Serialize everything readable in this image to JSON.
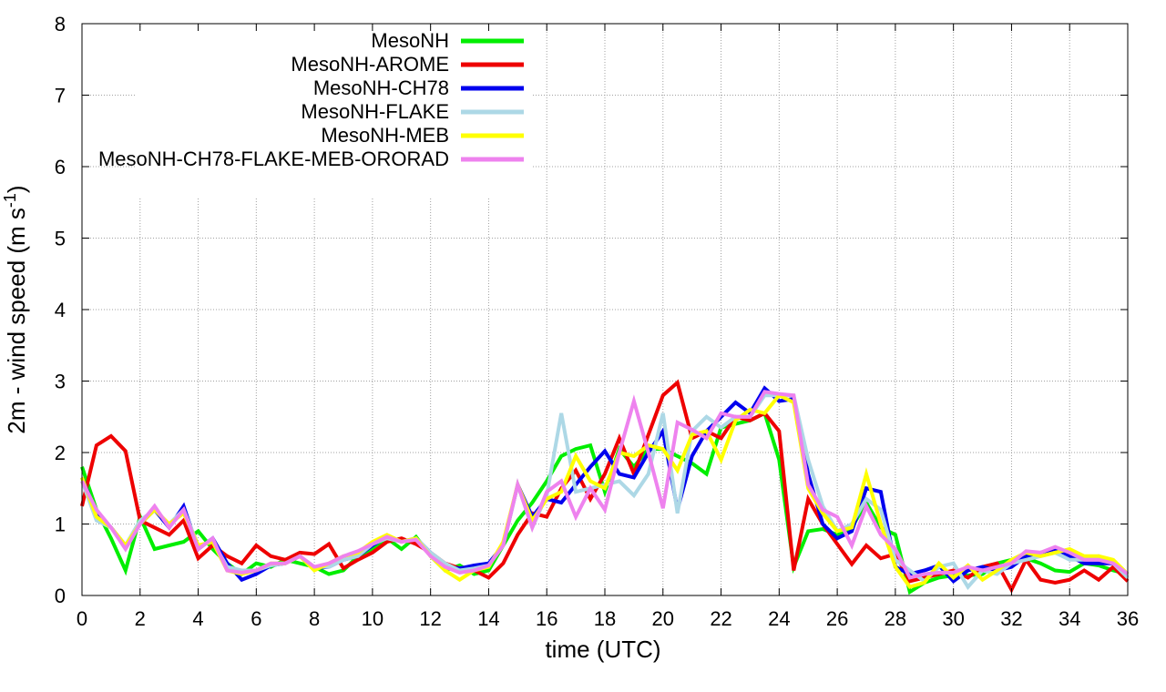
{
  "chart_data": {
    "type": "line",
    "xlabel": "time (UTC)",
    "ylabel": {
      "main": "2m - wind speed  (m s",
      "superscript": "-1",
      "close": ")"
    },
    "xlim": [
      0,
      36
    ],
    "ylim": [
      0,
      8
    ],
    "xticks": [
      0,
      2,
      4,
      6,
      8,
      10,
      12,
      14,
      16,
      18,
      20,
      22,
      24,
      26,
      28,
      30,
      32,
      34,
      36
    ],
    "yticks": [
      0,
      1,
      2,
      3,
      4,
      5,
      6,
      7,
      8
    ],
    "grid": true,
    "legend_position": "top-left",
    "x": [
      0,
      0.5,
      1,
      1.5,
      2,
      2.5,
      3,
      3.5,
      4,
      4.5,
      5,
      5.5,
      6,
      6.5,
      7,
      7.5,
      8,
      8.5,
      9,
      9.5,
      10,
      10.5,
      11,
      11.5,
      12,
      12.5,
      13,
      13.5,
      14,
      14.5,
      15,
      15.5,
      16,
      16.5,
      17,
      17.5,
      18,
      18.5,
      19,
      19.5,
      20,
      20.5,
      21,
      21.5,
      22,
      22.5,
      23,
      23.5,
      24,
      24.5,
      25,
      25.5,
      26,
      26.5,
      27,
      27.5,
      28,
      28.5,
      29,
      29.5,
      30,
      30.5,
      31,
      31.5,
      32,
      32.5,
      33,
      33.5,
      34,
      34.5,
      35,
      35.5,
      36
    ],
    "series": [
      {
        "name": "MesoNH",
        "color": "#00ee00",
        "values": [
          1.8,
          1.2,
          0.8,
          0.35,
          1.1,
          0.65,
          0.7,
          0.75,
          0.9,
          0.65,
          0.45,
          0.3,
          0.45,
          0.4,
          0.5,
          0.45,
          0.4,
          0.3,
          0.35,
          0.55,
          0.65,
          0.8,
          0.65,
          0.82,
          0.55,
          0.35,
          0.42,
          0.3,
          0.35,
          0.7,
          1.05,
          1.3,
          1.6,
          1.95,
          2.05,
          2.1,
          1.45,
          2.05,
          1.8,
          2.05,
          2.05,
          1.95,
          1.85,
          1.7,
          2.35,
          2.4,
          2.45,
          2.55,
          1.9,
          0.4,
          0.9,
          0.93,
          0.85,
          0.95,
          1.3,
          0.95,
          0.85,
          0.05,
          0.18,
          0.25,
          0.28,
          0.28,
          0.3,
          0.45,
          0.5,
          0.52,
          0.45,
          0.35,
          0.33,
          0.45,
          0.42,
          0.35,
          0.3
        ]
      },
      {
        "name": "MesoNH-AROME",
        "color": "#ee0000",
        "values": [
          1.25,
          2.1,
          2.23,
          2.02,
          1.05,
          0.95,
          0.85,
          1.05,
          0.52,
          0.7,
          0.55,
          0.45,
          0.7,
          0.55,
          0.5,
          0.6,
          0.58,
          0.72,
          0.38,
          0.5,
          0.6,
          0.75,
          0.8,
          0.72,
          0.6,
          0.45,
          0.38,
          0.35,
          0.25,
          0.45,
          0.85,
          1.15,
          1.1,
          1.5,
          1.75,
          1.35,
          1.7,
          2.2,
          1.7,
          2.25,
          2.8,
          2.98,
          2.2,
          2.3,
          2.2,
          2.5,
          2.45,
          2.55,
          2.3,
          0.35,
          1.35,
          1.0,
          0.72,
          0.44,
          0.7,
          0.52,
          0.58,
          0.2,
          0.25,
          0.3,
          0.35,
          0.25,
          0.4,
          0.45,
          0.08,
          0.5,
          0.22,
          0.18,
          0.22,
          0.35,
          0.22,
          0.4,
          0.2
        ]
      },
      {
        "name": "MesoNH-CH78",
        "color": "#0000ee",
        "values": [
          1.65,
          1.15,
          0.95,
          0.7,
          1.0,
          1.2,
          0.95,
          1.25,
          0.65,
          0.8,
          0.45,
          0.22,
          0.3,
          0.42,
          0.45,
          0.55,
          0.38,
          0.4,
          0.5,
          0.55,
          0.7,
          0.82,
          0.75,
          0.8,
          0.6,
          0.4,
          0.38,
          0.42,
          0.45,
          0.7,
          1.55,
          1.1,
          1.35,
          1.3,
          1.55,
          1.8,
          2.02,
          1.7,
          1.65,
          2.0,
          2.3,
          1.2,
          1.95,
          2.3,
          2.5,
          2.7,
          2.55,
          2.9,
          2.72,
          2.75,
          1.7,
          1.0,
          0.8,
          0.9,
          1.5,
          1.45,
          0.4,
          0.3,
          0.35,
          0.42,
          0.2,
          0.35,
          0.4,
          0.35,
          0.4,
          0.55,
          0.6,
          0.65,
          0.55,
          0.45,
          0.45,
          0.45,
          0.3
        ]
      },
      {
        "name": "MesoNH-FLAKE",
        "color": "#add8e6",
        "values": [
          1.6,
          1.05,
          0.95,
          0.7,
          1.05,
          1.2,
          1.0,
          1.2,
          0.7,
          0.75,
          0.4,
          0.35,
          0.35,
          0.42,
          0.45,
          0.55,
          0.4,
          0.4,
          0.5,
          0.55,
          0.72,
          0.8,
          0.75,
          0.8,
          0.6,
          0.45,
          0.35,
          0.38,
          0.42,
          0.7,
          1.55,
          0.95,
          1.4,
          2.55,
          1.45,
          1.5,
          1.55,
          1.6,
          1.4,
          1.7,
          2.55,
          1.15,
          2.3,
          2.5,
          2.35,
          2.5,
          2.5,
          2.8,
          2.8,
          2.8,
          1.9,
          1.25,
          0.9,
          1.0,
          1.35,
          1.2,
          0.5,
          0.35,
          0.2,
          0.4,
          0.45,
          0.12,
          0.35,
          0.3,
          0.45,
          0.5,
          0.55,
          0.6,
          0.5,
          0.5,
          0.55,
          0.45,
          0.25
        ]
      },
      {
        "name": "MesoNH-MEB",
        "color": "#ffff00",
        "values": [
          1.65,
          1.1,
          0.95,
          0.7,
          1.0,
          1.2,
          1.0,
          1.15,
          0.7,
          0.75,
          0.35,
          0.3,
          0.35,
          0.45,
          0.45,
          0.55,
          0.35,
          0.45,
          0.55,
          0.6,
          0.75,
          0.85,
          0.75,
          0.8,
          0.55,
          0.35,
          0.22,
          0.35,
          0.4,
          0.75,
          1.55,
          1.05,
          1.35,
          1.45,
          1.95,
          1.6,
          1.5,
          2.0,
          1.95,
          2.1,
          2.05,
          1.75,
          2.25,
          2.3,
          1.9,
          2.45,
          2.6,
          2.55,
          2.8,
          2.7,
          1.5,
          1.15,
          0.9,
          0.95,
          1.7,
          1.0,
          0.4,
          0.12,
          0.18,
          0.45,
          0.25,
          0.42,
          0.22,
          0.35,
          0.5,
          0.6,
          0.55,
          0.6,
          0.65,
          0.55,
          0.55,
          0.5,
          0.3
        ]
      },
      {
        "name": "MesoNH-CH78-FLAKE-MEB-ORORAD",
        "color": "#ee82ee",
        "values": [
          1.6,
          1.2,
          0.95,
          0.65,
          1.0,
          1.25,
          0.95,
          1.2,
          0.65,
          0.8,
          0.35,
          0.32,
          0.35,
          0.45,
          0.45,
          0.55,
          0.4,
          0.45,
          0.55,
          0.62,
          0.72,
          0.82,
          0.75,
          0.78,
          0.55,
          0.4,
          0.32,
          0.35,
          0.42,
          0.7,
          1.55,
          0.95,
          1.45,
          1.6,
          1.1,
          1.5,
          1.2,
          2.0,
          2.72,
          2.0,
          1.22,
          2.42,
          2.32,
          2.2,
          2.55,
          2.5,
          2.5,
          2.85,
          2.82,
          2.8,
          1.55,
          1.2,
          1.1,
          0.7,
          1.25,
          0.85,
          0.65,
          0.25,
          0.3,
          0.32,
          0.32,
          0.4,
          0.35,
          0.4,
          0.45,
          0.62,
          0.6,
          0.68,
          0.6,
          0.5,
          0.5,
          0.45,
          0.3
        ]
      }
    ]
  }
}
